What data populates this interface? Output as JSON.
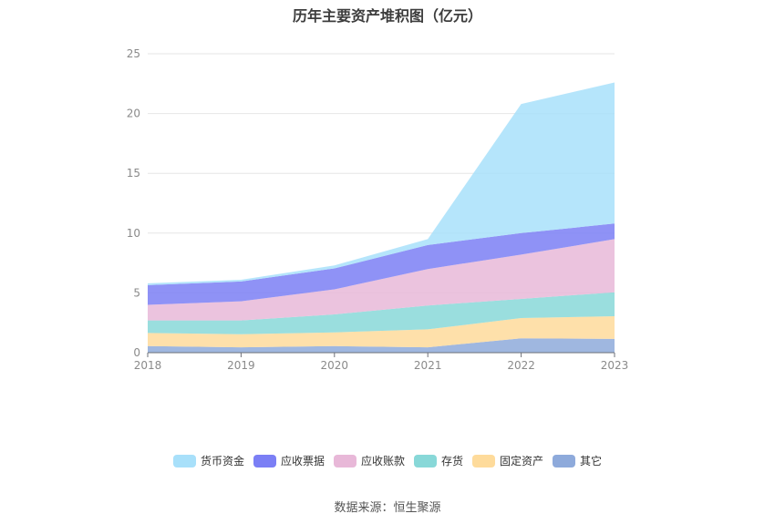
{
  "chart_data": {
    "type": "area",
    "stacked": true,
    "title": "历年主要资产堆积图（亿元）",
    "x": [
      "2018",
      "2019",
      "2020",
      "2021",
      "2022",
      "2023"
    ],
    "ylim": [
      0,
      25
    ],
    "yticks": [
      "0",
      "5",
      "10",
      "15",
      "20",
      "25"
    ],
    "grid": true,
    "legend_position": "bottom",
    "series": [
      {
        "name": "其它",
        "color": "#8eaadb",
        "values": [
          0.55,
          0.45,
          0.55,
          0.45,
          1.2,
          1.15
        ]
      },
      {
        "name": "固定资产",
        "color": "#fedb9b",
        "values": [
          1.1,
          1.1,
          1.15,
          1.5,
          1.7,
          1.9
        ]
      },
      {
        "name": "存货",
        "color": "#88d8d8",
        "values": [
          1.05,
          1.15,
          1.5,
          2.0,
          1.6,
          2.0
        ]
      },
      {
        "name": "应收账款",
        "color": "#e8b8d8",
        "values": [
          1.3,
          1.6,
          2.1,
          3.05,
          3.7,
          4.45
        ]
      },
      {
        "name": "应收票据",
        "color": "#7b7ff5",
        "values": [
          1.65,
          1.65,
          1.75,
          2.0,
          1.8,
          1.3
        ]
      },
      {
        "name": "货币资金",
        "color": "#a8e0fa",
        "values": [
          0.15,
          0.15,
          0.25,
          0.5,
          10.8,
          11.8
        ]
      }
    ]
  },
  "source": "数据来源：恒生聚源"
}
